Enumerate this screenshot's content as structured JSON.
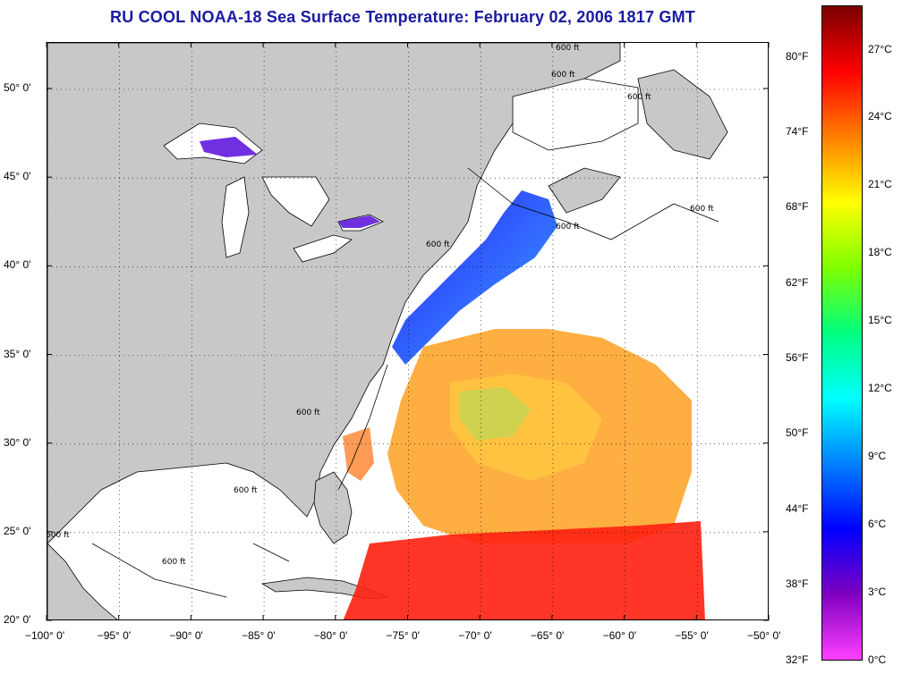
{
  "title": "RU COOL  NOAA-18  Sea Surface Temperature:  February 02, 2006 1817 GMT",
  "map": {
    "longitude_ticks": [
      "−100° 0'",
      "−95° 0'",
      "−90° 0'",
      "−85° 0'",
      "−80° 0'",
      "−75° 0'",
      "−70° 0'",
      "−65° 0'",
      "−60° 0'",
      "−55° 0'",
      "−50° 0'"
    ],
    "latitude_ticks": [
      "50° 0'",
      "45° 0'",
      "40° 0'",
      "35° 0'",
      "30° 0'",
      "25° 0'",
      "20° 0'"
    ],
    "depth_contour_labels": [
      "600 ft",
      "600 ft",
      "600 ft",
      "600 ft",
      "600 ft",
      "600 ft",
      "600 ft",
      "600 ft",
      "600 ft",
      "600 ft"
    ],
    "land_color": "#c8c8c8",
    "ocean_no_data_color": "#ffffff"
  },
  "colorbar": {
    "fahrenheit_ticks": [
      "80°F",
      "74°F",
      "68°F",
      "62°F",
      "56°F",
      "50°F",
      "44°F",
      "38°F",
      "32°F"
    ],
    "celsius_ticks": [
      "27°C",
      "24°C",
      "21°C",
      "18°C",
      "15°C",
      "12°C",
      "9°C",
      "6°C",
      "3°C",
      "0°C"
    ],
    "colors_top_to_bottom": [
      "#7a0000",
      "#ff0000",
      "#ff7f00",
      "#ffff00",
      "#7fff00",
      "#00ff80",
      "#00ffff",
      "#0080ff",
      "#0000ff",
      "#8000c0",
      "#ff40ff"
    ]
  }
}
